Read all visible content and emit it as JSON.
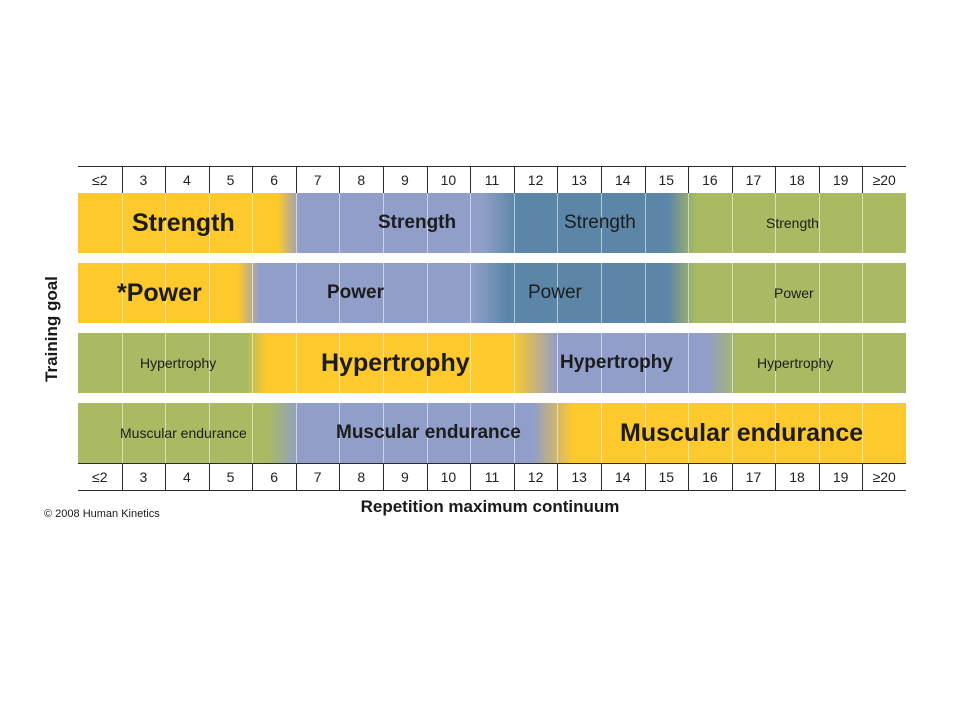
{
  "colors": {
    "yellow": "#fdc92c",
    "lavender": "#909ec9",
    "blue": "#5b86a8",
    "green": "#a9ba63"
  },
  "y_axis_title": "Training goal",
  "x_axis_title": "Repetition maximum continuum",
  "copyright": "© 2008 Human Kinetics",
  "ticks": [
    "≤2",
    "3",
    "4",
    "5",
    "6",
    "7",
    "8",
    "9",
    "10",
    "11",
    "12",
    "13",
    "14",
    "15",
    "16",
    "17",
    "18",
    "19",
    "≥20"
  ],
  "bands": [
    {
      "label_1": "Strength",
      "label_2": "Strength",
      "label_3": "Strength",
      "label_4": "Strength"
    },
    {
      "label_1": "*Power",
      "label_2": "Power",
      "label_3": "Power",
      "label_4": "Power"
    },
    {
      "label_1": "Hypertrophy",
      "label_2": "Hypertrophy",
      "label_3": "Hypertrophy",
      "label_4": "Hypertrophy"
    },
    {
      "label_1": "Muscular endurance",
      "label_2": "Muscular endurance",
      "label_3": "Muscular endurance"
    }
  ]
}
